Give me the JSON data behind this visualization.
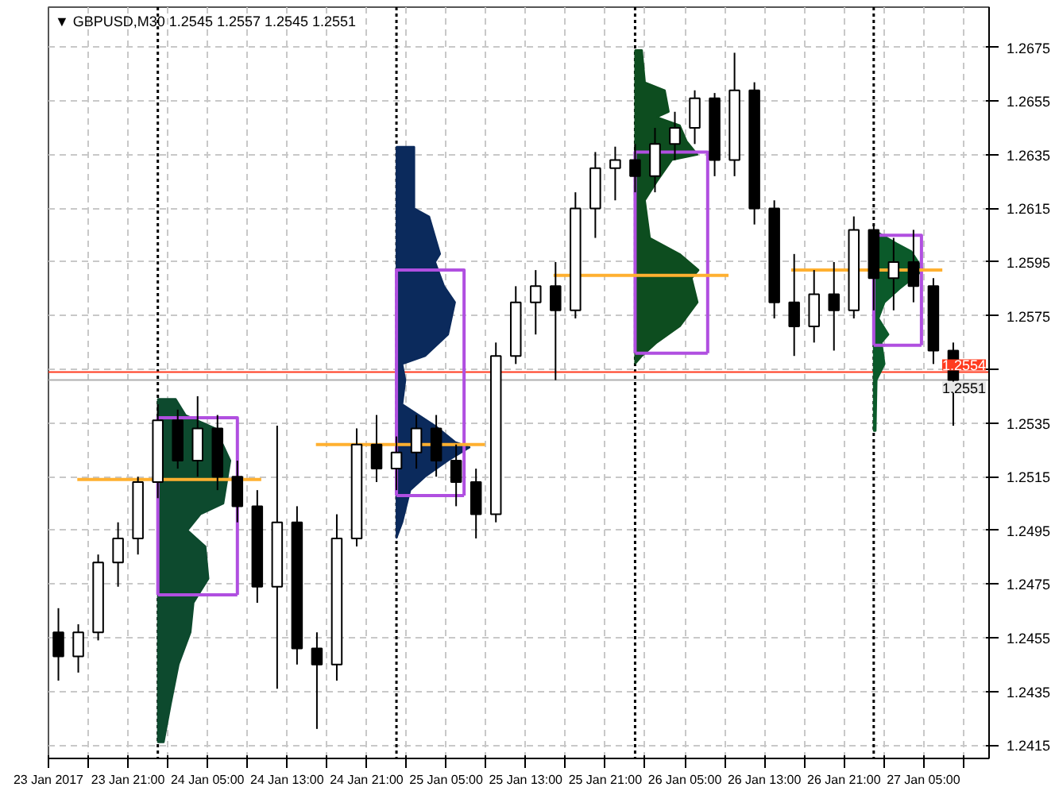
{
  "chart_data": {
    "type": "candlestick",
    "title": "▼ GBPUSD,M30  1.2545 1.2557 1.2545 1.2551",
    "x": [
      "2017-01-23T14:00",
      "2017-01-23T16:00",
      "2017-01-23T18:00",
      "2017-01-23T20:00",
      "2017-01-23T22:00",
      "2017-01-24T00:00",
      "2017-01-24T02:00",
      "2017-01-24T04:00",
      "2017-01-24T06:00",
      "2017-01-24T08:00",
      "2017-01-24T10:00",
      "2017-01-24T12:00",
      "2017-01-24T14:00",
      "2017-01-24T16:00",
      "2017-01-24T18:00",
      "2017-01-24T20:00",
      "2017-01-24T22:00",
      "2017-01-25T00:00",
      "2017-01-25T02:00",
      "2017-01-25T04:00",
      "2017-01-25T06:00",
      "2017-01-25T08:00",
      "2017-01-25T10:00",
      "2017-01-25T12:00",
      "2017-01-25T14:00",
      "2017-01-25T16:00",
      "2017-01-25T18:00",
      "2017-01-25T20:00",
      "2017-01-25T22:00",
      "2017-01-26T00:00",
      "2017-01-26T02:00",
      "2017-01-26T04:00",
      "2017-01-26T06:00",
      "2017-01-26T08:00",
      "2017-01-26T10:00",
      "2017-01-26T12:00",
      "2017-01-26T14:00",
      "2017-01-26T16:00",
      "2017-01-26T18:00",
      "2017-01-26T20:00",
      "2017-01-26T22:00",
      "2017-01-27T00:00",
      "2017-01-27T02:00",
      "2017-01-27T04:00",
      "2017-01-27T06:00",
      "2017-01-27T08:00"
    ],
    "ohlc": [
      [
        1.2457,
        1.2466,
        1.2439,
        1.2448
      ],
      [
        1.2448,
        1.246,
        1.2442,
        1.2457
      ],
      [
        1.2457,
        1.2486,
        1.2454,
        1.2483
      ],
      [
        1.2483,
        1.2498,
        1.2474,
        1.2492
      ],
      [
        1.2492,
        1.2515,
        1.2486,
        1.2513
      ],
      [
        1.2513,
        1.2542,
        1.2507,
        1.2536
      ],
      [
        1.2536,
        1.254,
        1.2518,
        1.2521
      ],
      [
        1.2521,
        1.2545,
        1.2515,
        1.2533
      ],
      [
        1.2533,
        1.2538,
        1.251,
        1.2515
      ],
      [
        1.2515,
        1.2521,
        1.2498,
        1.2504
      ],
      [
        1.2504,
        1.251,
        1.2468,
        1.2474
      ],
      [
        1.2474,
        1.2534,
        1.2436,
        1.2498
      ],
      [
        1.2498,
        1.2504,
        1.2445,
        1.2451
      ],
      [
        1.2451,
        1.2457,
        1.2421,
        1.2445
      ],
      [
        1.2445,
        1.2501,
        1.2439,
        1.2492
      ],
      [
        1.2492,
        1.2533,
        1.2489,
        1.2527
      ],
      [
        1.2527,
        1.2538,
        1.2513,
        1.2518
      ],
      [
        1.2518,
        1.253,
        1.251,
        1.2524
      ],
      [
        1.2524,
        1.2538,
        1.2518,
        1.2533
      ],
      [
        1.2533,
        1.2538,
        1.2515,
        1.2521
      ],
      [
        1.2521,
        1.2527,
        1.2504,
        1.2513
      ],
      [
        1.2513,
        1.2518,
        1.2492,
        1.2501
      ],
      [
        1.2501,
        1.2565,
        1.2498,
        1.256
      ],
      [
        1.256,
        1.2586,
        1.2557,
        1.258
      ],
      [
        1.258,
        1.2592,
        1.2568,
        1.2586
      ],
      [
        1.2586,
        1.2595,
        1.2551,
        1.2577
      ],
      [
        1.2577,
        1.2621,
        1.2574,
        1.2615
      ],
      [
        1.2615,
        1.2636,
        1.2604,
        1.263
      ],
      [
        1.263,
        1.2638,
        1.2618,
        1.2633
      ],
      [
        1.2633,
        1.2639,
        1.2621,
        1.2627
      ],
      [
        1.2627,
        1.2645,
        1.2621,
        1.2639
      ],
      [
        1.2639,
        1.2651,
        1.2633,
        1.2645
      ],
      [
        1.2645,
        1.2659,
        1.2639,
        1.2656
      ],
      [
        1.2656,
        1.2658,
        1.2627,
        1.2633
      ],
      [
        1.2633,
        1.2673,
        1.2627,
        1.2659
      ],
      [
        1.2659,
        1.2662,
        1.2609,
        1.2615
      ],
      [
        1.2615,
        1.2618,
        1.2574,
        1.258
      ],
      [
        1.258,
        1.2598,
        1.256,
        1.2571
      ],
      [
        1.2571,
        1.2592,
        1.2565,
        1.2583
      ],
      [
        1.2583,
        1.2595,
        1.2562,
        1.2577
      ],
      [
        1.2577,
        1.2612,
        1.2574,
        1.2607
      ],
      [
        1.2607,
        1.2609,
        1.2577,
        1.2589
      ],
      [
        1.2589,
        1.2604,
        1.2577,
        1.2595
      ],
      [
        1.2595,
        1.2607,
        1.258,
        1.2586
      ],
      [
        1.2586,
        1.2589,
        1.2557,
        1.2562
      ],
      [
        1.2562,
        1.2565,
        1.2534,
        1.2551
      ]
    ],
    "series": [
      {
        "type": "area",
        "color": "#0d4a2e",
        "x": [
          "2017-01-24T00:00",
          "2017-01-24T01:48",
          "2017-01-24T02:48",
          "2017-01-24T05:48",
          "2017-01-24T07:18",
          "2017-01-24T06:36",
          "2017-01-24T04:18",
          "2017-01-24T03:00",
          "2017-01-24T04:48",
          "2017-01-24T05:06",
          "2017-01-24T03:36",
          "2017-01-24T03:18",
          "2017-01-24T02:06",
          "2017-01-24T01:18",
          "2017-01-24T00:36",
          "2017-01-24T00:00"
        ],
        "values": [
          1.2544,
          1.2544,
          1.2538,
          1.2533,
          1.2521,
          1.2505,
          1.2501,
          1.2495,
          1.2489,
          1.2477,
          1.2468,
          1.2457,
          1.2445,
          1.243,
          1.2416,
          1.2416
        ]
      },
      {
        "type": "area",
        "color": "#0b2a5c",
        "x": [
          "2017-01-25T00:00",
          "2017-01-25T01:48",
          "2017-01-25T01:48",
          "2017-01-25T03:18",
          "2017-01-25T04:24",
          "2017-01-25T03:54",
          "2017-01-25T04:48",
          "2017-01-25T05:54",
          "2017-01-25T05:12",
          "2017-01-25T02:54",
          "2017-01-25T00:36",
          "2017-01-25T00:54",
          "2017-01-25T00:36",
          "2017-01-25T03:54",
          "2017-01-25T05:54",
          "2017-01-25T07:24",
          "2017-01-25T05:12",
          "2017-01-25T02:54",
          "2017-01-25T01:24",
          "2017-01-25T00:36",
          "2017-01-25T00:00"
        ],
        "values": [
          1.2638,
          1.2638,
          1.2615,
          1.2612,
          1.2598,
          1.2595,
          1.2586,
          1.258,
          1.2568,
          1.256,
          1.2557,
          1.2551,
          1.2542,
          1.2534,
          1.2528,
          1.2526,
          1.2521,
          1.2515,
          1.251,
          1.2498,
          1.2492
        ]
      },
      {
        "type": "area",
        "color": "#0d4d1f",
        "x": [
          "2017-01-26T00:00",
          "2017-01-26T00:42",
          "2017-01-26T01:00",
          "2017-01-26T03:00",
          "2017-01-26T03:24",
          "2017-01-26T02:12",
          "2017-01-26T04:30",
          "2017-01-26T05:12",
          "2017-01-26T06:18",
          "2017-01-26T03:42",
          "2017-01-26T02:12",
          "2017-01-26T01:00",
          "2017-01-26T01:30",
          "2017-01-26T04:30",
          "2017-01-26T06:24",
          "2017-01-26T05:42",
          "2017-01-26T06:18",
          "2017-01-26T04:30",
          "2017-01-26T02:12",
          "2017-01-26T00:42",
          "2017-01-26T00:00"
        ],
        "values": [
          1.2674,
          1.2674,
          1.2662,
          1.2659,
          1.2651,
          1.2649,
          1.2646,
          1.264,
          1.2635,
          1.2633,
          1.2625,
          1.2618,
          1.2604,
          1.2598,
          1.2592,
          1.2589,
          1.258,
          1.2571,
          1.2565,
          1.256,
          1.2557
        ]
      },
      {
        "type": "area",
        "color": "#0b5a2a",
        "x": [
          "2017-01-27T00:00",
          "2017-01-27T02:18",
          "2017-01-27T03:48",
          "2017-01-27T04:30",
          "2017-01-27T05:00",
          "2017-01-27T02:36",
          "2017-01-27T01:06",
          "2017-01-27T00:30",
          "2017-01-27T01:30",
          "2017-01-27T00:48",
          "2017-01-27T01:06",
          "2017-01-27T00:18",
          "2017-01-27T00:12",
          "2017-01-27T00:00"
        ],
        "values": [
          1.2607,
          1.2602,
          1.2599,
          1.2595,
          1.2592,
          1.2585,
          1.258,
          1.2574,
          1.2568,
          1.2565,
          1.2557,
          1.2551,
          1.2532,
          1.2532
        ]
      },
      {
        "type": "line",
        "color": "#b04fe0",
        "x": [
          "2017-01-24T00:00",
          "2017-01-24T00:00",
          "2017-01-24T08:00",
          "2017-01-24T08:00"
        ],
        "values": [
          1.2471,
          1.2537,
          1.2537,
          1.2471
        ]
      },
      {
        "type": "line",
        "color": "#b04fe0",
        "x": [
          "2017-01-24T00:00",
          "2017-01-24T08:00"
        ],
        "values": [
          1.2471,
          1.2471
        ]
      },
      {
        "type": "line",
        "color": "#b04fe0",
        "x": [
          "2017-01-25T00:00",
          "2017-01-25T00:00",
          "2017-01-25T06:48",
          "2017-01-25T06:48"
        ],
        "values": [
          1.2508,
          1.2592,
          1.2592,
          1.2508
        ]
      },
      {
        "type": "line",
        "color": "#b04fe0",
        "x": [
          "2017-01-25T00:00",
          "2017-01-25T06:48"
        ],
        "values": [
          1.2508,
          1.2508
        ]
      },
      {
        "type": "line",
        "color": "#b04fe0",
        "x": [
          "2017-01-26T00:00",
          "2017-01-26T00:00",
          "2017-01-26T07:18",
          "2017-01-26T07:18"
        ],
        "values": [
          1.2561,
          1.2636,
          1.2636,
          1.2561
        ]
      },
      {
        "type": "line",
        "color": "#b04fe0",
        "x": [
          "2017-01-26T00:00",
          "2017-01-26T07:18"
        ],
        "values": [
          1.2561,
          1.2561
        ]
      },
      {
        "type": "line",
        "color": "#b04fe0",
        "x": [
          "2017-01-27T00:00",
          "2017-01-27T00:00",
          "2017-01-27T04:48",
          "2017-01-27T04:48"
        ],
        "values": [
          1.2564,
          1.2605,
          1.2605,
          1.2564
        ]
      },
      {
        "type": "line",
        "color": "#b04fe0",
        "x": [
          "2017-01-27T00:00",
          "2017-01-27T04:48"
        ],
        "values": [
          1.2564,
          1.2564
        ]
      },
      {
        "type": "line",
        "color": "#ffb030",
        "x": [
          "2017-01-23T15:54",
          "2017-01-24T10:24"
        ],
        "values": [
          1.2514,
          1.2514
        ]
      },
      {
        "type": "line",
        "color": "#ffb030",
        "x": [
          "2017-01-24T15:54",
          "2017-01-25T08:54"
        ],
        "values": [
          1.2527,
          1.2527
        ]
      },
      {
        "type": "line",
        "color": "#ffb030",
        "x": [
          "2017-01-25T15:48",
          "2017-01-26T09:24"
        ],
        "values": [
          1.259,
          1.259
        ]
      },
      {
        "type": "line",
        "color": "#ffb030",
        "x": [
          "2017-01-26T15:42",
          "2017-01-27T06:54"
        ],
        "values": [
          1.2592,
          1.2592
        ]
      }
    ],
    "xlim": [
      "2017-01-23T13:00",
      "2017-01-27T11:36"
    ],
    "xticks": [
      {
        "value": "2017-01-23T13:00",
        "label": "23 Jan 2017"
      },
      {
        "value": "2017-01-23T17:00",
        "label": null
      },
      {
        "value": "2017-01-23T21:00",
        "label": "23 Jan 21:00"
      },
      {
        "value": "2017-01-24T01:00",
        "label": null
      },
      {
        "value": "2017-01-24T05:00",
        "label": "24 Jan 05:00"
      },
      {
        "value": "2017-01-24T09:00",
        "label": null
      },
      {
        "value": "2017-01-24T13:00",
        "label": "24 Jan 13:00"
      },
      {
        "value": "2017-01-24T17:00",
        "label": null
      },
      {
        "value": "2017-01-24T21:00",
        "label": "24 Jan 21:00"
      },
      {
        "value": "2017-01-25T01:00",
        "label": null
      },
      {
        "value": "2017-01-25T05:00",
        "label": "25 Jan 05:00"
      },
      {
        "value": "2017-01-25T09:00",
        "label": null
      },
      {
        "value": "2017-01-25T13:00",
        "label": "25 Jan 13:00"
      },
      {
        "value": "2017-01-25T17:00",
        "label": null
      },
      {
        "value": "2017-01-25T21:00",
        "label": "25 Jan 21:00"
      },
      {
        "value": "2017-01-26T01:00",
        "label": null
      },
      {
        "value": "2017-01-26T05:00",
        "label": "26 Jan 05:00"
      },
      {
        "value": "2017-01-26T09:00",
        "label": null
      },
      {
        "value": "2017-01-26T13:00",
        "label": "26 Jan 13:00"
      },
      {
        "value": "2017-01-26T17:00",
        "label": null
      },
      {
        "value": "2017-01-26T21:00",
        "label": "26 Jan 21:00"
      },
      {
        "value": "2017-01-27T01:00",
        "label": null
      },
      {
        "value": "2017-01-27T05:00",
        "label": "27 Jan 05:00"
      },
      {
        "value": "2017-01-27T09:00",
        "label": null
      }
    ],
    "ylim": [
      1.241,
      1.269
    ],
    "yticks": [
      1.2415,
      1.2435,
      1.2455,
      1.2475,
      1.2495,
      1.2515,
      1.2535,
      {
        "value": 1.2555,
        "label": null
      },
      1.2575,
      1.2595,
      1.2615,
      1.2635,
      1.2655,
      1.2675
    ],
    "ref_lines": [
      {
        "axis": "x",
        "value": "2017-01-24",
        "color": "#000000",
        "line_style": "dotted"
      },
      {
        "axis": "x",
        "value": "2017-01-25",
        "color": "#000000",
        "line_style": "dotted"
      },
      {
        "axis": "x",
        "value": "2017-01-26",
        "color": "#000000",
        "line_style": "dotted"
      },
      {
        "axis": "x",
        "value": "2017-01-27",
        "color": "#000000",
        "line_style": "dotted"
      },
      {
        "axis": "y",
        "value": 1.2554,
        "label": "1.2554",
        "color": "#ff3b1f",
        "line_style": "solid"
      },
      {
        "axis": "y",
        "value": 1.2551,
        "label": "1.2551",
        "color": "#b0b0b0",
        "line_style": "solid"
      }
    ],
    "grid": true
  }
}
